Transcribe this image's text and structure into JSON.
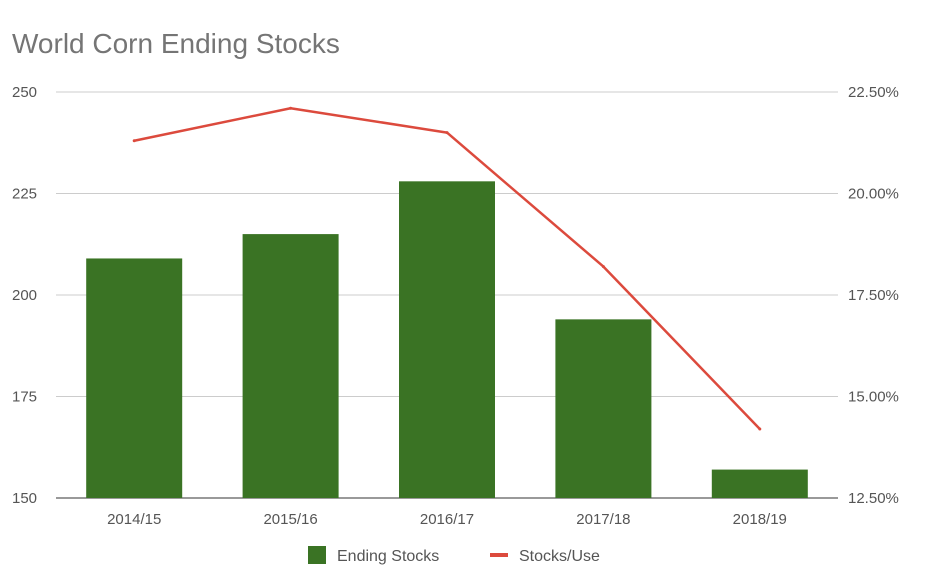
{
  "chart_data": {
    "type": "bar",
    "title": "World Corn Ending Stocks",
    "categories": [
      "2014/15",
      "2015/16",
      "2016/17",
      "2017/18",
      "2018/19"
    ],
    "series": [
      {
        "name": "Ending Stocks",
        "kind": "bar",
        "axis": "left",
        "color": "#3a7324",
        "values": [
          209,
          215,
          228,
          194,
          157
        ]
      },
      {
        "name": "Stocks/Use",
        "kind": "line",
        "axis": "right",
        "color": "#dc4a3d",
        "values": [
          21.3,
          22.1,
          21.5,
          18.2,
          14.2
        ]
      }
    ],
    "y_left": {
      "min": 150,
      "max": 250,
      "ticks": [
        "150",
        "175",
        "200",
        "225",
        "250"
      ]
    },
    "y_right": {
      "min": 12.5,
      "max": 22.5,
      "ticks": [
        "12.50%",
        "15.00%",
        "17.50%",
        "20.00%",
        "22.50%"
      ]
    },
    "grid": true,
    "legend_position": "bottom"
  }
}
